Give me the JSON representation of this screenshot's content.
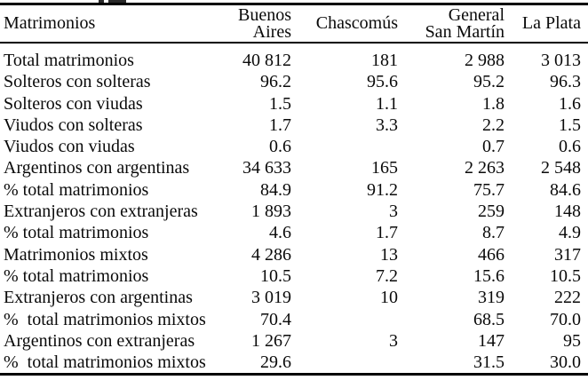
{
  "colors": {
    "text": "#0a0a0a",
    "rules": "#000000",
    "background": "#ffffff"
  },
  "table": {
    "header": {
      "col0": "Matrimonios",
      "columns": [
        "Buenos\nAires",
        "Chascomús",
        "General\nSan Martín",
        "La Plata"
      ]
    },
    "rows": [
      {
        "label": "Total matrimonios",
        "values": [
          "40 812",
          "181",
          "2 988",
          "3 013"
        ]
      },
      {
        "label": "Solteros con solteras",
        "values": [
          "96.2",
          "95.6",
          "95.2",
          "96.3"
        ]
      },
      {
        "label": "Solteros con viudas",
        "values": [
          "1.5",
          "1.1",
          "1.8",
          "1.6"
        ]
      },
      {
        "label": "Viudos con solteras",
        "values": [
          "1.7",
          "3.3",
          "2.2",
          "1.5"
        ]
      },
      {
        "label": "Viudos con viudas",
        "values": [
          "0.6",
          "",
          "0.7",
          "0.6"
        ]
      },
      {
        "label": "Argentinos con argentinas",
        "values": [
          "34 633",
          "165",
          "2 263",
          "2 548"
        ]
      },
      {
        "label": "% total matrimonios",
        "values": [
          "84.9",
          "91.2",
          "75.7",
          "84.6"
        ]
      },
      {
        "label": "Extranjeros con extranjeras",
        "values": [
          "1 893",
          "3",
          "259",
          "148"
        ]
      },
      {
        "label": "% total matrimonios",
        "values": [
          "4.6",
          "1.7",
          "8.7",
          "4.9"
        ]
      },
      {
        "label": "Matrimonios mixtos",
        "values": [
          "4 286",
          "13",
          "466",
          "317"
        ]
      },
      {
        "label": "% total matrimonios",
        "values": [
          "10.5",
          "7.2",
          "15.6",
          "10.5"
        ]
      },
      {
        "label": "Extranjeros con argentinas",
        "values": [
          "3 019",
          "10",
          "319",
          "222"
        ]
      },
      {
        "label": "%  total matrimonios mixtos",
        "values": [
          "70.4",
          "",
          "68.5",
          "70.0"
        ]
      },
      {
        "label": "Argentinos con extranjeras",
        "values": [
          "1 267",
          "3",
          "147",
          "95"
        ]
      },
      {
        "label": "%  total matrimonios mixtos",
        "values": [
          "29.6",
          "",
          "31.5",
          "30.0"
        ]
      }
    ]
  }
}
